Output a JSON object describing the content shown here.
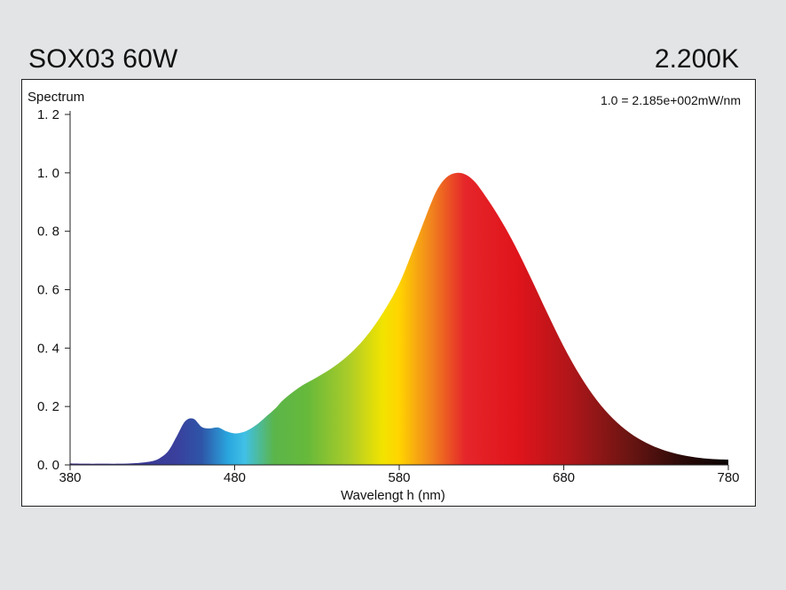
{
  "header": {
    "model": "SOX03 60W",
    "cct": "2.200K"
  },
  "chart_data": {
    "type": "area",
    "ylabel": "Spectrum",
    "xlabel": "Wavelengt h (nm)",
    "annotation": "1.0 =  2.185e+002mW/nm",
    "xlim": [
      380,
      780
    ],
    "ylim": [
      0,
      1.2
    ],
    "x_ticks": [
      380,
      480,
      580,
      680,
      780
    ],
    "x_tick_labels": [
      "380",
      "480",
      "580",
      "680",
      "780"
    ],
    "y_ticks": [
      0,
      0.2,
      0.4,
      0.6,
      0.8,
      1.0,
      1.2
    ],
    "y_tick_labels": [
      "0. 0",
      "0. 2",
      "0. 4",
      "0. 6",
      "0. 8",
      "1. 0",
      "1. 2"
    ],
    "fill": "visible-spectrum gradient",
    "series": [
      {
        "x": [
          380,
          390,
          400,
          410,
          420,
          430,
          435,
          440,
          445,
          450,
          455,
          460,
          465,
          470,
          475,
          480,
          485,
          490,
          495,
          500,
          505,
          510,
          520,
          530,
          540,
          550,
          560,
          570,
          580,
          590,
          600,
          605,
          610,
          615,
          620,
          625,
          630,
          640,
          650,
          660,
          670,
          680,
          690,
          700,
          710,
          720,
          730,
          740,
          750,
          760,
          770,
          780
        ],
        "y": [
          0.005,
          0.004,
          0.004,
          0.004,
          0.006,
          0.013,
          0.025,
          0.05,
          0.1,
          0.15,
          0.158,
          0.13,
          0.125,
          0.128,
          0.115,
          0.108,
          0.112,
          0.125,
          0.145,
          0.17,
          0.195,
          0.225,
          0.268,
          0.3,
          0.335,
          0.38,
          0.44,
          0.52,
          0.62,
          0.76,
          0.905,
          0.96,
          0.99,
          1.0,
          0.995,
          0.975,
          0.94,
          0.855,
          0.755,
          0.64,
          0.52,
          0.405,
          0.305,
          0.222,
          0.158,
          0.11,
          0.076,
          0.052,
          0.036,
          0.026,
          0.02,
          0.018
        ]
      }
    ]
  }
}
